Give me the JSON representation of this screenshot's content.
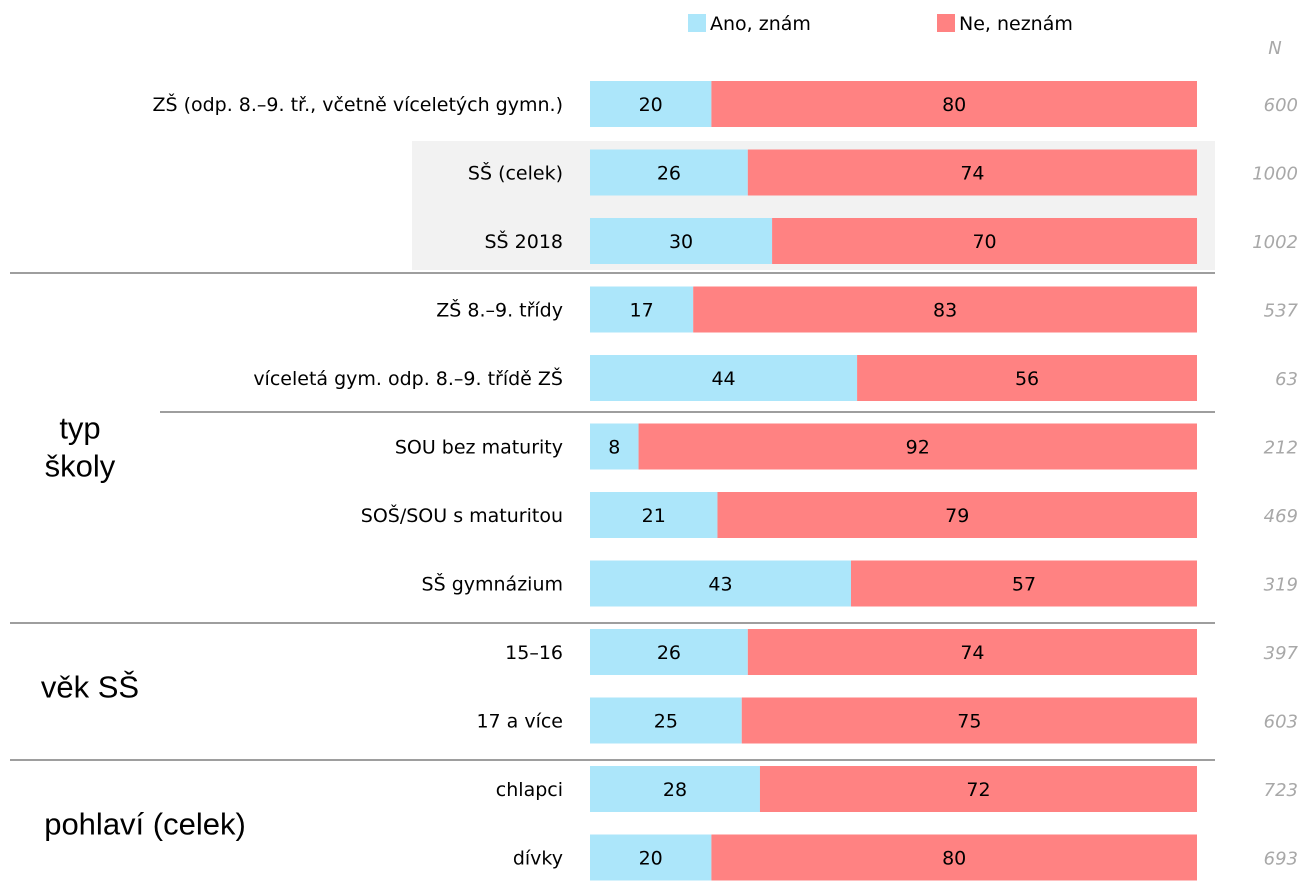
{
  "colors": {
    "yes": "#ace6fa",
    "no": "#ff8282",
    "n_text": "#a8a8a8",
    "highlight": "#f2f2f2",
    "separator": "#7f7f7f"
  },
  "legend": {
    "yes": "Ano, znám",
    "no": "Ne, neznám"
  },
  "n_header": "N",
  "chart_data": {
    "type": "bar",
    "orientation": "horizontal",
    "stacked": true,
    "xlim": [
      0,
      100
    ],
    "grid": false,
    "legend_position": "top",
    "series": [
      {
        "name": "Ano, znám",
        "values": [
          20,
          26,
          30,
          17,
          44,
          8,
          21,
          43,
          26,
          25,
          28,
          20
        ]
      },
      {
        "name": "Ne, neznám",
        "values": [
          80,
          74,
          70,
          83,
          56,
          92,
          79,
          57,
          74,
          75,
          72,
          80
        ]
      }
    ],
    "categories": [
      "ZŠ (odp. 8.–9. tř., včetně víceletých gymn.)",
      "SŠ (celek)",
      "SŠ 2018",
      "ZŠ 8.–9. třídy",
      "víceletá gym. odp. 8.–9. třídě ZŠ",
      "SOU bez maturity",
      "SOŠ/SOU s maturitou",
      "SŠ gymnázium",
      "15–16",
      "17 a více",
      "chlapci",
      "dívky"
    ],
    "n_values": [
      "600",
      "1000",
      "1002",
      "537",
      "63",
      "212",
      "469",
      "319",
      "397",
      "603",
      "723",
      "693"
    ],
    "groups": [
      {
        "label_lines": [
          "typ",
          "školy"
        ],
        "rows": [
          3,
          4,
          5,
          6,
          7
        ]
      },
      {
        "label_lines": [
          "věk SŠ"
        ],
        "rows": [
          8,
          9
        ]
      },
      {
        "label_lines": [
          "pohlaví (celek)"
        ],
        "rows": [
          10,
          11
        ]
      }
    ],
    "highlighted_rows": [
      1,
      2
    ]
  }
}
